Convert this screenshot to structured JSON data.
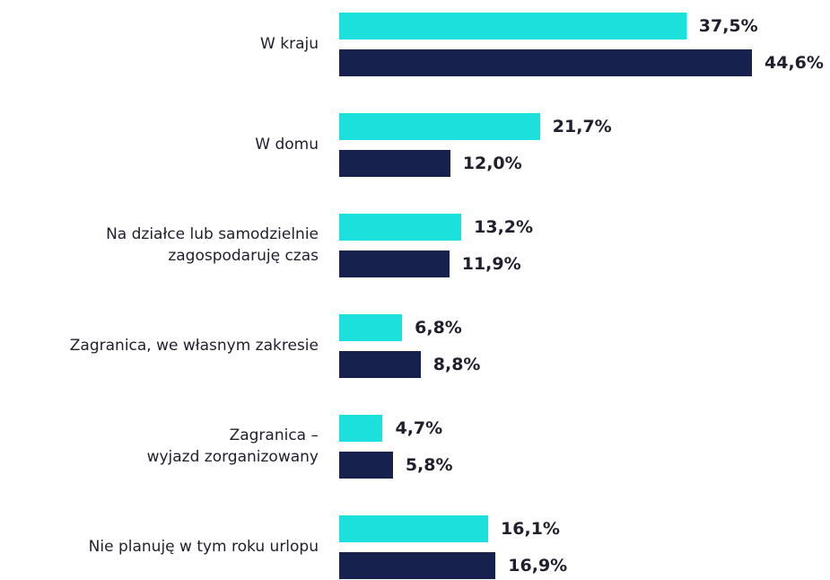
{
  "chart_data": {
    "type": "bar",
    "orientation": "horizontal",
    "categories": [
      "W kraju",
      "W domu",
      "Na działce lub samodzielnie\nzagospodaruję czas",
      "Zagranica, we własnym zakresie",
      "Zagranica –\nwyjazd zorganizowany",
      "Nie planuję w tym roku urlopu"
    ],
    "series": [
      {
        "color": "#1ce0db",
        "values": [
          37.5,
          21.7,
          13.2,
          6.8,
          4.7,
          16.1
        ],
        "value_labels": [
          "37,5%",
          "21,7%",
          "13,2%",
          "6,8%",
          "4,7%",
          "16,1%"
        ]
      },
      {
        "color": "#17214e",
        "values": [
          44.6,
          12.0,
          11.9,
          8.8,
          5.8,
          16.9
        ],
        "value_labels": [
          "44,6%",
          "12,0%",
          "11,9%",
          "8,8%",
          "5,8%",
          "16,9%"
        ]
      }
    ]
  }
}
